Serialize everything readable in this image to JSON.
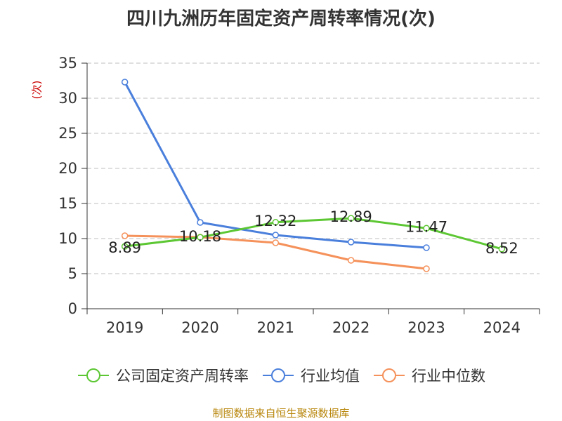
{
  "title": "四川九洲历年固定资产周转率情况(次)",
  "source_note": "制图数据来自恒生聚源数据库",
  "colors": {
    "company": "#5cc733",
    "industry_avg": "#4a7fdc",
    "industry_median": "#f5915a",
    "grid": "#cccccc",
    "axis": "#333333"
  },
  "chart_data": {
    "type": "line",
    "title": "四川九洲历年固定资产周转率情况(次)",
    "ylabel": "(次)",
    "xlabel": "",
    "categories": [
      "2019",
      "2020",
      "2021",
      "2022",
      "2023",
      "2024"
    ],
    "ylim": [
      0,
      35
    ],
    "yticks": [
      0,
      5,
      10,
      15,
      20,
      25,
      30,
      35
    ],
    "grid": true,
    "legend_position": "bottom",
    "series": [
      {
        "name": "公司固定资产周转率",
        "values": [
          8.89,
          10.18,
          12.32,
          12.89,
          11.47,
          8.52
        ],
        "labels": [
          "8.89",
          "10.18",
          "12.32",
          "12.89",
          "11.47",
          "8.52"
        ]
      },
      {
        "name": "行业均值",
        "values": [
          32.3,
          12.3,
          10.5,
          9.5,
          8.7,
          null
        ]
      },
      {
        "name": "行业中位数",
        "values": [
          10.4,
          10.2,
          9.4,
          6.9,
          5.7,
          null
        ]
      }
    ]
  }
}
